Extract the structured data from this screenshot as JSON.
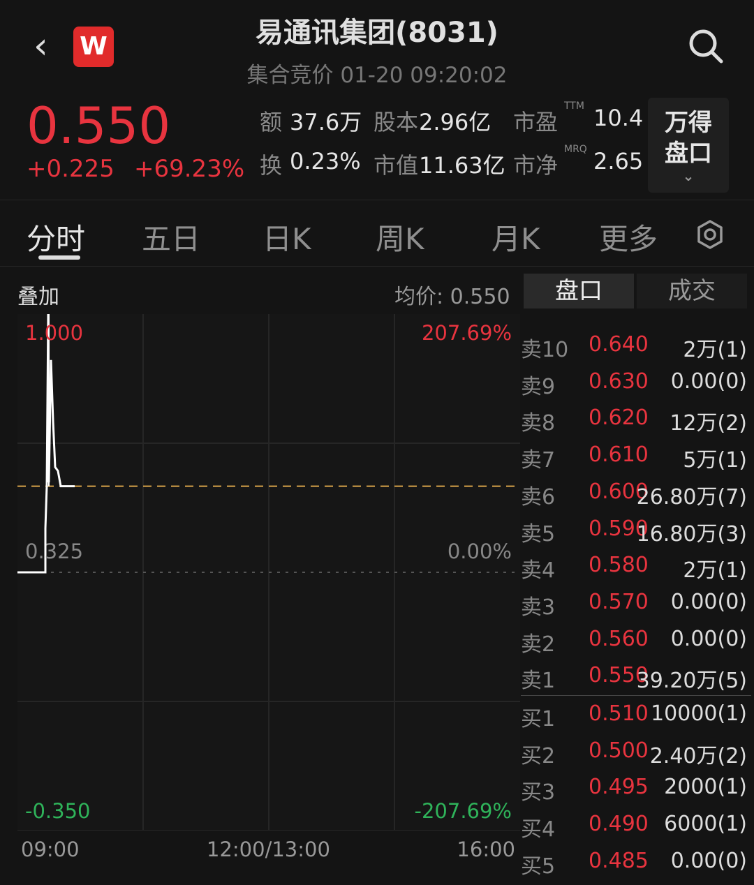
{
  "header": {
    "title": "易通讯集团(8031)",
    "subtitle": "集合竞价 01-20 09:20:02",
    "logo": "W",
    "back_icon": "chevron-left-icon",
    "search_icon": "search-icon"
  },
  "quote": {
    "price": "0.550",
    "change": "+0.225",
    "change_pct": "+69.23%",
    "stats": [
      {
        "label": "额",
        "value": "37.6万"
      },
      {
        "label": "股本",
        "value": "2.96亿"
      },
      {
        "label": "市盈",
        "sup": "TTM",
        "value": "10.4"
      },
      {
        "label": "换",
        "value": "0.23%"
      },
      {
        "label": "市值",
        "value": "11.63亿"
      },
      {
        "label": "市净",
        "sup": "MRQ",
        "value": "2.65"
      }
    ],
    "wind_button": {
      "line1": "万得",
      "line2": "盘口",
      "icon": "chevron-down-icon"
    }
  },
  "tabs": [
    "分时",
    "五日",
    "日K",
    "周K",
    "月K",
    "更多"
  ],
  "active_tab": "分时",
  "settings_icon": "gear-icon",
  "chart": {
    "overlay_label": "叠加",
    "avg_label": "均价: 0.550",
    "y_left": [
      "1.000",
      "0.325",
      "-0.350"
    ],
    "y_right": [
      "207.69%",
      "0.00%",
      "-207.69%"
    ],
    "x_labels": [
      "09:00",
      "12:00/13:00",
      "16:00"
    ],
    "prev_close": 0.325,
    "avg_price": 0.55,
    "y_range": [
      -0.35,
      1.0
    ],
    "trace": [
      [
        0,
        0.325
      ],
      [
        20,
        0.325
      ],
      [
        20,
        0.44
      ],
      [
        21,
        0.55
      ],
      [
        22,
        1.0
      ],
      [
        22.5,
        0.56
      ],
      [
        24,
        0.88
      ],
      [
        25.5,
        0.72
      ],
      [
        27,
        0.6
      ],
      [
        29,
        0.59
      ],
      [
        31,
        0.55
      ],
      [
        41,
        0.55
      ]
    ],
    "colors": {
      "up": "#e8343f",
      "down": "#2fb35a",
      "line": "#ffffff",
      "avg": "#d9a44a"
    }
  },
  "book": {
    "tabs": [
      "盘口",
      "成交"
    ],
    "active": "盘口",
    "asks": [
      {
        "n": "卖10",
        "p": "0.640",
        "v": "2万(1)"
      },
      {
        "n": "卖9",
        "p": "0.630",
        "v": "0.00(0)"
      },
      {
        "n": "卖8",
        "p": "0.620",
        "v": "12万(2)"
      },
      {
        "n": "卖7",
        "p": "0.610",
        "v": "5万(1)"
      },
      {
        "n": "卖6",
        "p": "0.600",
        "v": "26.80万(7)"
      },
      {
        "n": "卖5",
        "p": "0.590",
        "v": "16.80万(3)"
      },
      {
        "n": "卖4",
        "p": "0.580",
        "v": "2万(1)"
      },
      {
        "n": "卖3",
        "p": "0.570",
        "v": "0.00(0)"
      },
      {
        "n": "卖2",
        "p": "0.560",
        "v": "0.00(0)"
      },
      {
        "n": "卖1",
        "p": "0.550",
        "v": "39.20万(5)"
      }
    ],
    "bids": [
      {
        "n": "买1",
        "p": "0.510",
        "v": "10000(1)"
      },
      {
        "n": "买2",
        "p": "0.500",
        "v": "2.40万(2)"
      },
      {
        "n": "买3",
        "p": "0.495",
        "v": "2000(1)"
      },
      {
        "n": "买4",
        "p": "0.490",
        "v": "6000(1)"
      },
      {
        "n": "买5",
        "p": "0.485",
        "v": "0.00(0)"
      }
    ]
  }
}
